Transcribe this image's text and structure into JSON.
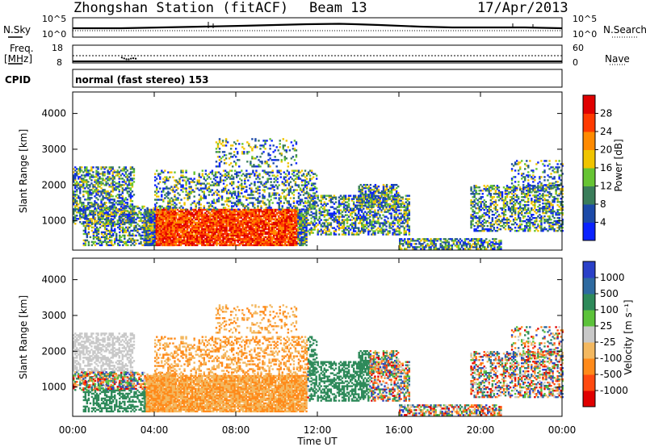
{
  "header": {
    "station": "Zhongshan Station (fitACF)",
    "beam": "Beam 13",
    "date": "17/Apr/2013"
  },
  "strip_panels": {
    "noise": {
      "left_label": "N.Sky",
      "right_label": "N.Search",
      "left_ticks": [
        "10^5",
        "10^0"
      ],
      "right_ticks": [
        "10^5",
        "10^0"
      ]
    },
    "freq": {
      "left_label_1": "Freq.",
      "left_label_2": "[MHz]",
      "right_label": "Nave",
      "left_ticks": [
        "18",
        "8"
      ],
      "right_ticks": [
        "60",
        "0"
      ]
    },
    "cpid": {
      "label": "CPID",
      "text": "normal (fast stereo) 153"
    }
  },
  "chart_data": [
    {
      "type": "heatmap",
      "name": "power",
      "ylabel": "Slant Range [km]",
      "ytick_labels": [
        "1000",
        "2000",
        "3000",
        "4000"
      ],
      "yticks": [
        1000,
        2000,
        3000,
        4000
      ],
      "ylim": [
        180,
        4600
      ],
      "xlabel": "Time UT",
      "xlim": [
        0,
        24
      ],
      "xtick_labels": [
        "00:00",
        "04:00",
        "08:00",
        "12:00",
        "16:00",
        "20:00",
        "00:00"
      ],
      "xticks": [
        0,
        4,
        8,
        12,
        16,
        20,
        24
      ],
      "colorbar": {
        "label": "Power [dB]",
        "tick_labels": [
          "4",
          "8",
          "12",
          "16",
          "20",
          "24",
          "28"
        ],
        "ticks": [
          4,
          8,
          12,
          16,
          20,
          24,
          28
        ],
        "range": [
          0,
          32
        ],
        "colors": [
          "#0a22ff",
          "#1c4aa8",
          "#3a7d5a",
          "#66c433",
          "#f0c400",
          "#ff8a00",
          "#ff3a00",
          "#e00000"
        ]
      }
    },
    {
      "type": "heatmap",
      "name": "velocity",
      "ylabel": "Slant Range [km]",
      "ytick_labels": [
        "1000",
        "2000",
        "3000",
        "4000"
      ],
      "yticks": [
        1000,
        2000,
        3000,
        4000
      ],
      "ylim": [
        180,
        4600
      ],
      "xlabel": "Time UT",
      "xlim": [
        0,
        24
      ],
      "xtick_labels": [
        "00:00",
        "04:00",
        "08:00",
        "12:00",
        "16:00",
        "20:00",
        "00:00"
      ],
      "xticks": [
        0,
        4,
        8,
        12,
        16,
        20,
        24
      ],
      "colorbar": {
        "label": "Velocity [m s⁻¹]",
        "tick_labels": [
          "1000",
          "500",
          "100",
          "25",
          "-25",
          "-100",
          "-500",
          "-1000"
        ],
        "colors": [
          "#2a40c8",
          "#2e6aa0",
          "#2e8a5a",
          "#5cc23a",
          "#c8c8c8",
          "#f3b860",
          "#ff8a1a",
          "#ff4a10",
          "#e00000"
        ]
      }
    }
  ]
}
